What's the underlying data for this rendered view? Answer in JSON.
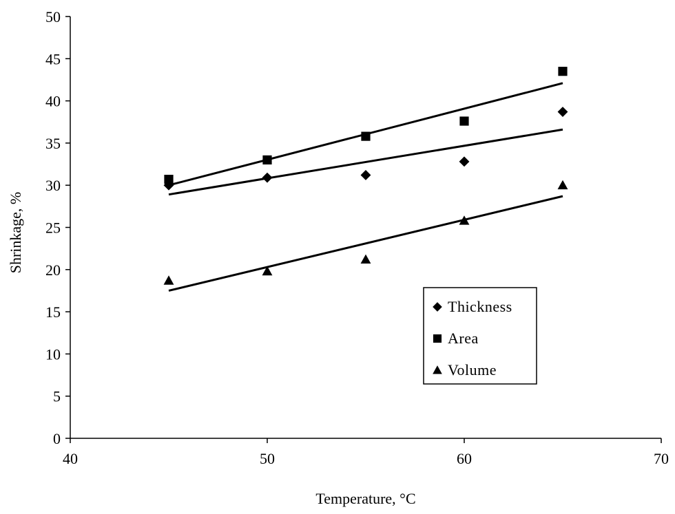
{
  "chart_data": {
    "type": "scatter",
    "xlabel": "Temperature, °C",
    "ylabel": "Shrinkage, %",
    "xlim": [
      40,
      70
    ],
    "ylim": [
      0,
      50
    ],
    "xticks": [
      40,
      50,
      60,
      70
    ],
    "yticks": [
      0,
      5,
      10,
      15,
      20,
      25,
      30,
      35,
      40,
      45,
      50
    ],
    "grid": false,
    "legend_position": "lower-right",
    "series": [
      {
        "name": "Thickness",
        "marker": "diamond",
        "x": [
          45,
          50,
          55,
          60,
          65
        ],
        "y": [
          30.0,
          30.9,
          31.2,
          32.8,
          38.7
        ],
        "trendline": {
          "x": [
            45,
            65
          ],
          "y": [
            28.9,
            36.6
          ]
        }
      },
      {
        "name": "Area",
        "marker": "square",
        "x": [
          45,
          50,
          55,
          60,
          65
        ],
        "y": [
          30.7,
          33.0,
          35.8,
          37.6,
          43.5
        ],
        "trendline": {
          "x": [
            45,
            65
          ],
          "y": [
            30.0,
            42.1
          ]
        }
      },
      {
        "name": "Volume",
        "marker": "triangle",
        "x": [
          45,
          50,
          55,
          60,
          65
        ],
        "y": [
          18.7,
          19.8,
          21.2,
          25.8,
          30.0
        ],
        "trendline": {
          "x": [
            45,
            65
          ],
          "y": [
            17.5,
            28.7
          ]
        }
      }
    ]
  }
}
